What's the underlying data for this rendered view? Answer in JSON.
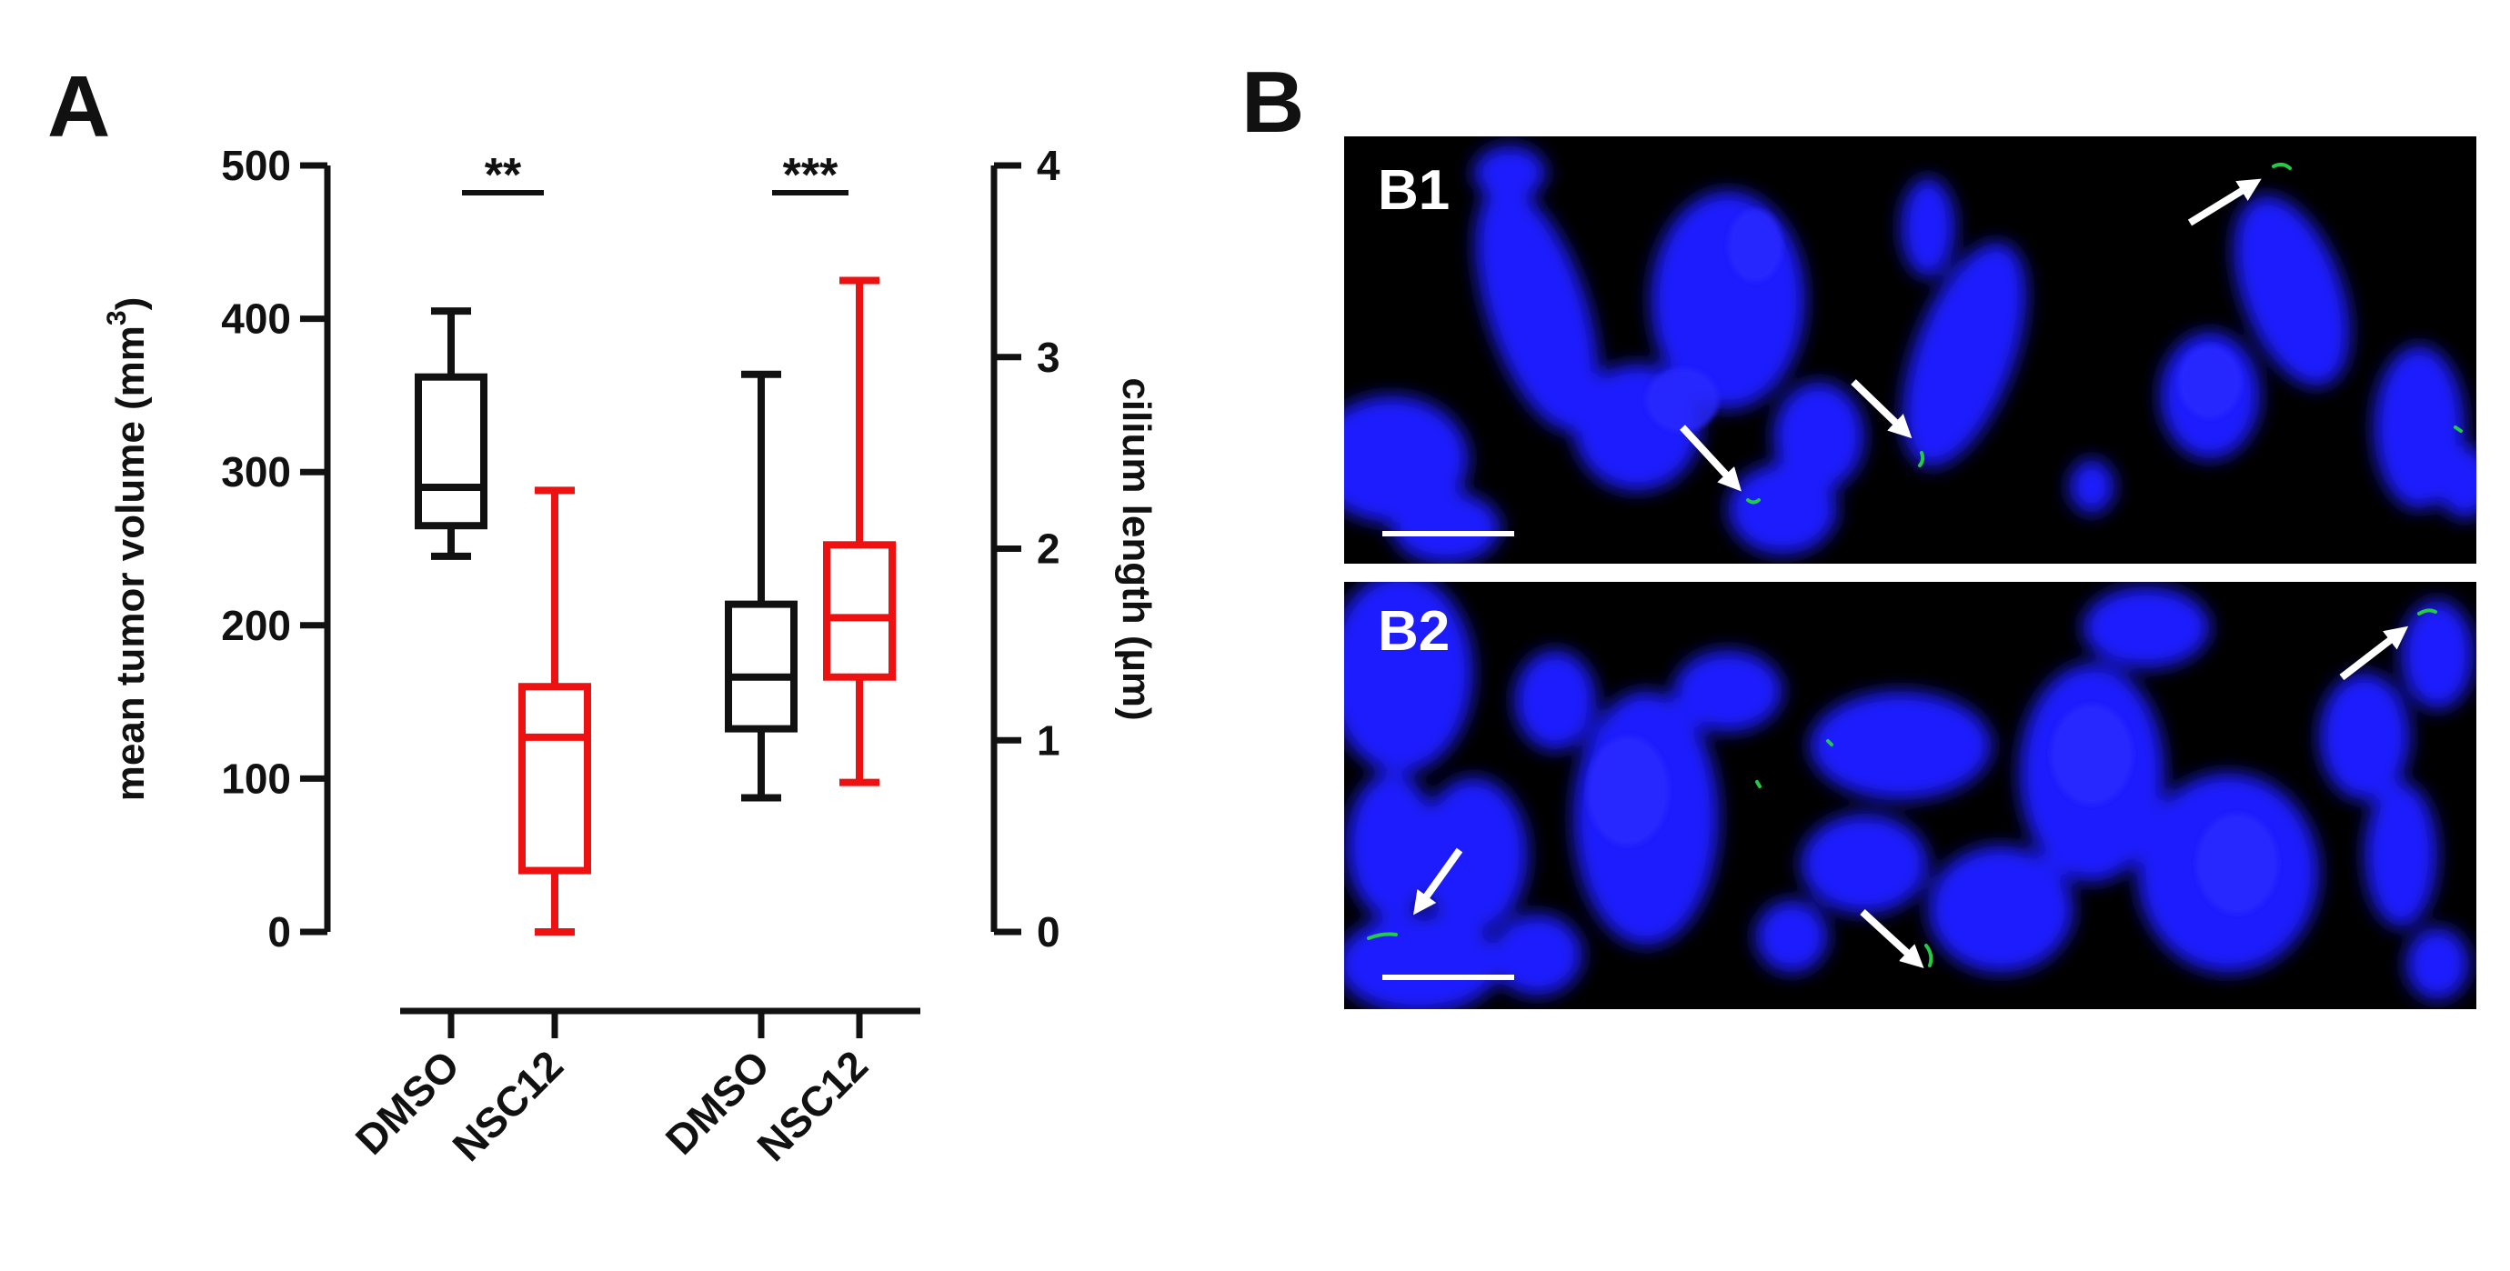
{
  "panel_a": {
    "letter": "A"
  },
  "panel_b": {
    "letter": "B",
    "images": [
      {
        "label": "B1",
        "channels": [
          "blue",
          "green"
        ],
        "colors": {
          "nuclei": "#1a1aff",
          "cilia": "#22cc44",
          "background": "#000000"
        }
      },
      {
        "label": "B2",
        "channels": [
          "blue",
          "green"
        ],
        "colors": {
          "nuclei": "#1a1aff",
          "cilia": "#22cc44",
          "background": "#000000"
        }
      }
    ]
  },
  "chart_data": {
    "type": "box",
    "categories": [
      "DMSO",
      "NSC12",
      "DMSO",
      "NSC12"
    ],
    "left_axis": {
      "label": "mean tumor volume (mm",
      "label_sup": "3",
      "label_end": ")",
      "range": [
        0,
        500
      ],
      "ticks": [
        "0",
        "100",
        "200",
        "300",
        "400",
        "500"
      ]
    },
    "right_axis": {
      "label": "cilium length (",
      "label_mu": "µ",
      "label_end": "m)",
      "range": [
        0,
        4
      ],
      "ticks": [
        "0",
        "1",
        "2",
        "3",
        "4"
      ]
    },
    "series": [
      {
        "axis": "left",
        "category": "DMSO",
        "color": "#111111",
        "min": 245,
        "q1": 265,
        "median": 290,
        "q3": 362,
        "max": 405
      },
      {
        "axis": "left",
        "category": "NSC12",
        "color": "#ee1111",
        "min": 0,
        "q1": 40,
        "median": 127,
        "q3": 160,
        "max": 288
      },
      {
        "axis": "right",
        "category": "DMSO",
        "color": "#111111",
        "min": 0.7,
        "q1": 1.06,
        "median": 1.33,
        "q3": 1.71,
        "max": 2.91
      },
      {
        "axis": "right",
        "category": "NSC12",
        "color": "#ee1111",
        "min": 0.78,
        "q1": 1.33,
        "median": 1.64,
        "q3": 2.02,
        "max": 3.4
      }
    ],
    "significance": [
      {
        "label": "**",
        "between": [
          0,
          1
        ]
      },
      {
        "label": "***",
        "between": [
          2,
          3
        ]
      }
    ]
  }
}
